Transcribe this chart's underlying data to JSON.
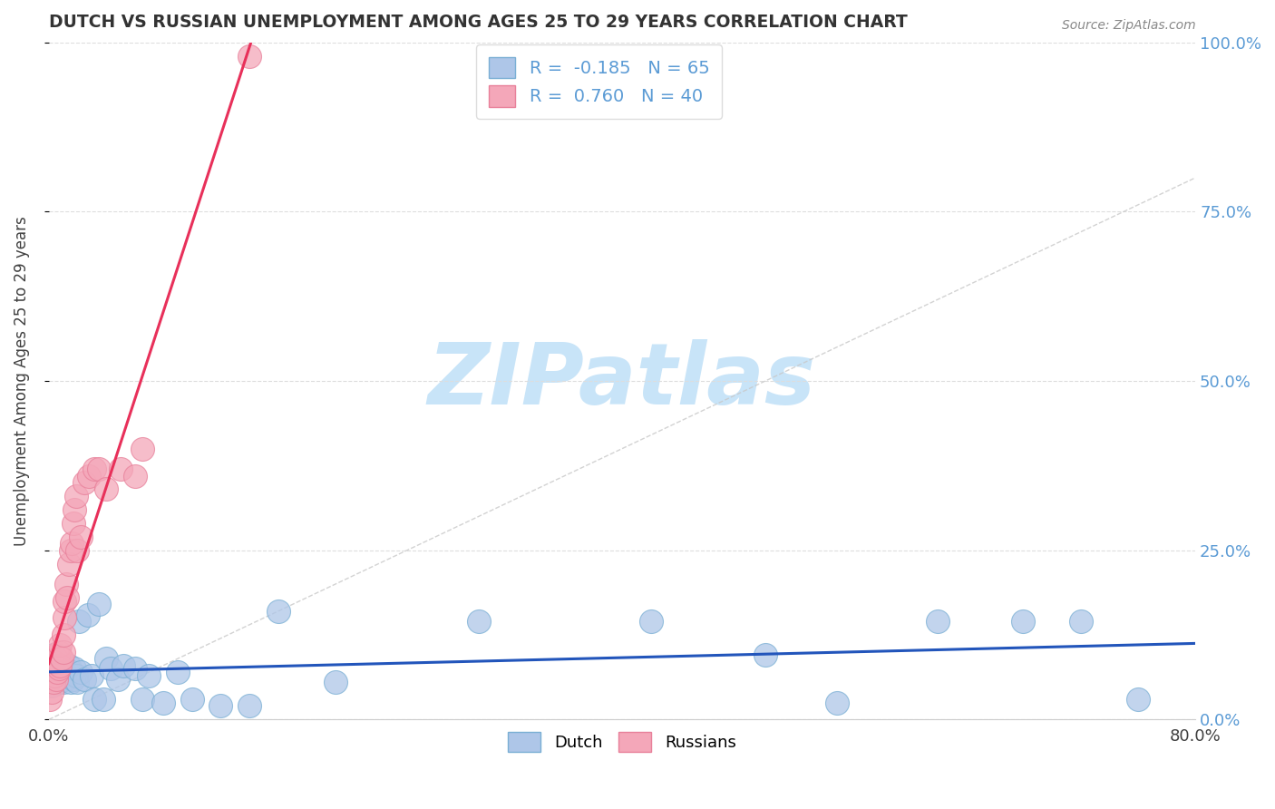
{
  "title": "DUTCH VS RUSSIAN UNEMPLOYMENT AMONG AGES 25 TO 29 YEARS CORRELATION CHART",
  "source": "Source: ZipAtlas.com",
  "ylabel": "Unemployment Among Ages 25 to 29 years",
  "xlim": [
    0.0,
    0.8
  ],
  "ylim": [
    0.0,
    1.0
  ],
  "ytick_labels_right": [
    "0.0%",
    "25.0%",
    "50.0%",
    "75.0%",
    "100.0%"
  ],
  "yticks_right": [
    0.0,
    0.25,
    0.5,
    0.75,
    1.0
  ],
  "blue_R": -0.185,
  "blue_N": 65,
  "pink_R": 0.76,
  "pink_N": 40,
  "blue_color": "#aec6e8",
  "pink_color": "#f4a7b9",
  "blue_edge_color": "#7aafd4",
  "pink_edge_color": "#e8809a",
  "blue_line_color": "#2255bb",
  "pink_line_color": "#e8305a",
  "watermark": "ZIPatlas",
  "watermark_color": "#c8e4f8",
  "background_color": "#ffffff",
  "grid_color": "#dddddd",
  "title_color": "#333333",
  "right_axis_color": "#5b9bd5",
  "dutch_x": [
    0.001,
    0.001,
    0.002,
    0.002,
    0.002,
    0.003,
    0.003,
    0.003,
    0.004,
    0.004,
    0.004,
    0.005,
    0.005,
    0.005,
    0.006,
    0.006,
    0.007,
    0.007,
    0.007,
    0.008,
    0.008,
    0.009,
    0.009,
    0.01,
    0.01,
    0.011,
    0.012,
    0.013,
    0.014,
    0.015,
    0.016,
    0.017,
    0.018,
    0.019,
    0.02,
    0.021,
    0.022,
    0.025,
    0.027,
    0.03,
    0.032,
    0.035,
    0.038,
    0.04,
    0.043,
    0.048,
    0.052,
    0.06,
    0.065,
    0.07,
    0.08,
    0.09,
    0.1,
    0.12,
    0.14,
    0.16,
    0.2,
    0.3,
    0.42,
    0.5,
    0.55,
    0.62,
    0.68,
    0.72,
    0.76
  ],
  "dutch_y": [
    0.06,
    0.08,
    0.05,
    0.075,
    0.09,
    0.065,
    0.08,
    0.095,
    0.055,
    0.07,
    0.085,
    0.06,
    0.075,
    0.09,
    0.065,
    0.08,
    0.055,
    0.07,
    0.085,
    0.06,
    0.075,
    0.065,
    0.08,
    0.055,
    0.07,
    0.06,
    0.075,
    0.065,
    0.08,
    0.055,
    0.07,
    0.06,
    0.075,
    0.065,
    0.055,
    0.145,
    0.07,
    0.06,
    0.155,
    0.065,
    0.03,
    0.17,
    0.03,
    0.09,
    0.075,
    0.06,
    0.08,
    0.075,
    0.03,
    0.065,
    0.025,
    0.07,
    0.03,
    0.02,
    0.02,
    0.16,
    0.055,
    0.145,
    0.145,
    0.095,
    0.025,
    0.145,
    0.145,
    0.145,
    0.03
  ],
  "russian_x": [
    0.001,
    0.001,
    0.002,
    0.002,
    0.003,
    0.003,
    0.004,
    0.004,
    0.005,
    0.005,
    0.006,
    0.006,
    0.007,
    0.007,
    0.008,
    0.008,
    0.009,
    0.01,
    0.01,
    0.011,
    0.011,
    0.012,
    0.013,
    0.014,
    0.015,
    0.016,
    0.017,
    0.018,
    0.019,
    0.02,
    0.022,
    0.025,
    0.028,
    0.032,
    0.035,
    0.04,
    0.05,
    0.06,
    0.065,
    0.14
  ],
  "russian_y": [
    0.03,
    0.06,
    0.04,
    0.07,
    0.055,
    0.08,
    0.065,
    0.085,
    0.06,
    0.09,
    0.07,
    0.095,
    0.075,
    0.1,
    0.08,
    0.11,
    0.09,
    0.1,
    0.125,
    0.15,
    0.175,
    0.2,
    0.18,
    0.23,
    0.25,
    0.26,
    0.29,
    0.31,
    0.33,
    0.25,
    0.27,
    0.35,
    0.36,
    0.37,
    0.37,
    0.34,
    0.37,
    0.36,
    0.4,
    0.98
  ]
}
